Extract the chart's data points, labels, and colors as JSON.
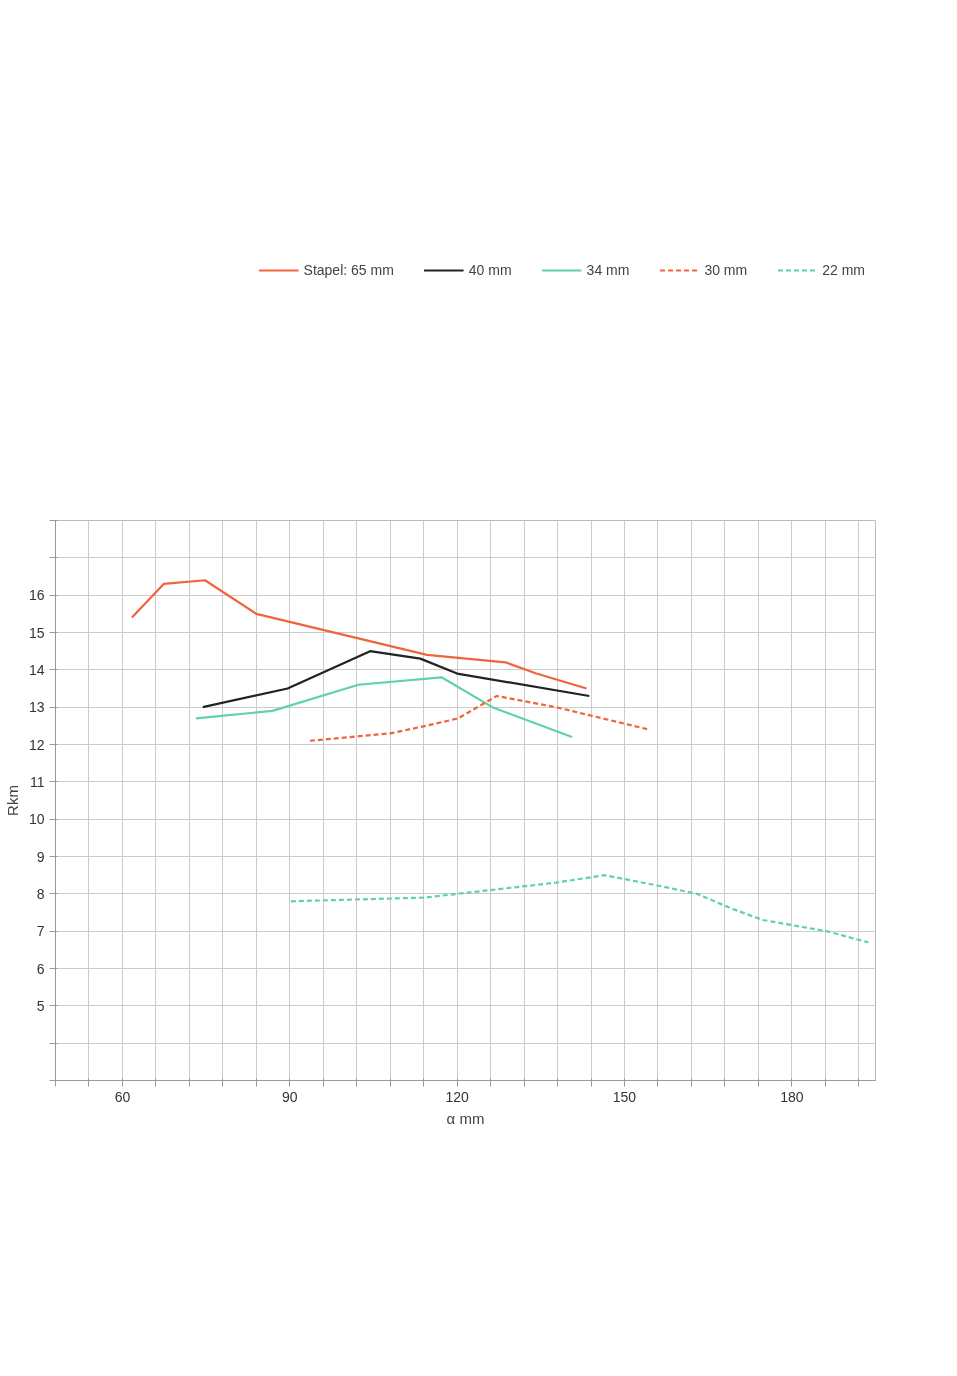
{
  "chart_data": {
    "type": "line",
    "xlabel": "α mm",
    "ylabel": "Rkm",
    "xlim": [
      48,
      195
    ],
    "ylim": [
      3,
      18
    ],
    "xticks": [
      {
        "value": 48,
        "label": null
      },
      {
        "value": 54,
        "label": null
      },
      60,
      {
        "value": 66,
        "label": null
      },
      {
        "value": 72,
        "label": null
      },
      {
        "value": 78,
        "label": null
      },
      {
        "value": 84,
        "label": null
      },
      90,
      {
        "value": 96,
        "label": null
      },
      {
        "value": 102,
        "label": null
      },
      {
        "value": 108,
        "label": null
      },
      {
        "value": 114,
        "label": null
      },
      120,
      {
        "value": 126,
        "label": null
      },
      {
        "value": 132,
        "label": null
      },
      {
        "value": 138,
        "label": null
      },
      {
        "value": 144,
        "label": null
      },
      150,
      {
        "value": 156,
        "label": null
      },
      {
        "value": 162,
        "label": null
      },
      {
        "value": 168,
        "label": null
      },
      {
        "value": 174,
        "label": null
      },
      180,
      {
        "value": 186,
        "label": null
      },
      {
        "value": 192,
        "label": null
      }
    ],
    "yticks": [
      {
        "value": 3,
        "label": null
      },
      {
        "value": 4,
        "label": null
      },
      5,
      6,
      7,
      8,
      9,
      10,
      11,
      12,
      13,
      14,
      15,
      16,
      {
        "value": 17,
        "label": null
      },
      {
        "value": 18,
        "label": null
      }
    ],
    "grid": true,
    "legend": "top",
    "marker": "none",
    "series": [
      {
        "name": "Stapel: 65 mm",
        "color": "#f0643c",
        "line_style": "solid",
        "x": [
          61.7,
          67.4,
          74.8,
          84.0,
          114.6,
          128.7,
          134.2,
          143.2
        ],
        "values": [
          15.4,
          16.3,
          16.4,
          15.5,
          14.4,
          14.2,
          13.9,
          13.5
        ]
      },
      {
        "name": "40 mm",
        "color": "#222222",
        "line_style": "solid",
        "x": [
          74.4,
          89.6,
          104.4,
          113.4,
          120.0,
          143.7
        ],
        "values": [
          13.0,
          13.5,
          14.5,
          14.3,
          13.9,
          13.3
        ]
      },
      {
        "name": "34 mm",
        "color": "#5fd2aa",
        "line_style": "solid",
        "x": [
          73.2,
          86.9,
          102.3,
          117.2,
          126.3,
          140.6
        ],
        "values": [
          12.7,
          12.9,
          13.6,
          13.8,
          13.0,
          12.2
        ]
      },
      {
        "name": "30 mm",
        "color": "#f0643c",
        "line_style": "dashed",
        "x": [
          93.6,
          108.1,
          114.4,
          120.2,
          127.1,
          137.7,
          154.4
        ],
        "values": [
          12.1,
          12.3,
          12.5,
          12.7,
          13.3,
          13.0,
          12.4
        ]
      },
      {
        "name": "22 mm",
        "color": "#5fd2aa",
        "line_style": "dashed",
        "x": [
          90.2,
          114.2,
          125.9,
          137.7,
          146.4,
          156.7,
          163.0,
          169.3,
          174.8,
          186.2,
          193.7
        ],
        "values": [
          7.8,
          7.9,
          8.1,
          8.3,
          8.5,
          8.2,
          8.0,
          7.6,
          7.3,
          7.0,
          6.7
        ]
      }
    ]
  }
}
